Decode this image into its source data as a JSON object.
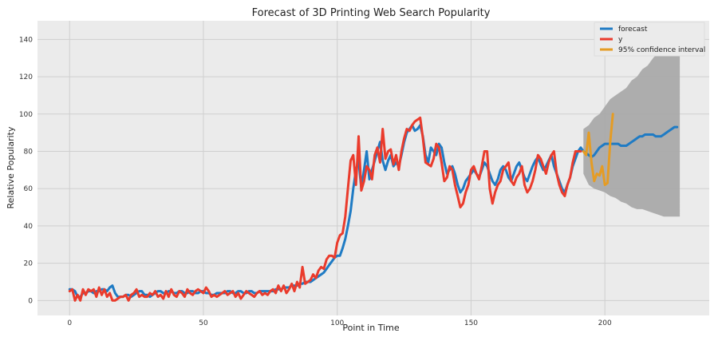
{
  "chart_data": {
    "type": "line",
    "title": "Forecast of 3D Printing Web Search Popularity",
    "xlabel": "Point in Time",
    "ylabel": "Relative Popularity",
    "xlim": [
      -12,
      239
    ],
    "ylim": [
      -8,
      150
    ],
    "xticks": [
      0,
      50,
      100,
      150,
      200
    ],
    "yticks": [
      0,
      20,
      40,
      60,
      80,
      100,
      120,
      140
    ],
    "grid": true,
    "legend_position": "top-right",
    "colors": {
      "forecast": "#1f7bc4",
      "y": "#ea3b2c",
      "confidence": "#e59c24",
      "band": "#a6a6a6",
      "plot_background": "#ebebeb",
      "grid": "#cfcfcf"
    },
    "series": [
      {
        "name": "forecast",
        "x": [
          0,
          1,
          2,
          3,
          4,
          5,
          6,
          7,
          8,
          9,
          10,
          11,
          12,
          13,
          14,
          15,
          16,
          17,
          18,
          19,
          20,
          21,
          22,
          23,
          24,
          25,
          26,
          27,
          28,
          29,
          30,
          31,
          32,
          33,
          34,
          35,
          36,
          37,
          38,
          39,
          40,
          41,
          42,
          43,
          44,
          45,
          46,
          47,
          48,
          49,
          50,
          51,
          52,
          53,
          54,
          55,
          56,
          57,
          58,
          59,
          60,
          61,
          62,
          63,
          64,
          65,
          66,
          67,
          68,
          69,
          70,
          71,
          72,
          73,
          74,
          75,
          76,
          77,
          78,
          79,
          80,
          81,
          82,
          83,
          84,
          85,
          86,
          87,
          88,
          89,
          90,
          91,
          92,
          93,
          94,
          95,
          96,
          97,
          98,
          99,
          100,
          101,
          102,
          103,
          104,
          105,
          106,
          107,
          108,
          109,
          110,
          111,
          112,
          113,
          114,
          115,
          116,
          117,
          118,
          119,
          120,
          121,
          122,
          123,
          124,
          125,
          126,
          127,
          128,
          129,
          130,
          131,
          132,
          133,
          134,
          135,
          136,
          137,
          138,
          139,
          140,
          141,
          142,
          143,
          144,
          145,
          146,
          147,
          148,
          149,
          150,
          151,
          152,
          153,
          154,
          155,
          156,
          157,
          158,
          159,
          160,
          161,
          162,
          163,
          164,
          165,
          166,
          167,
          168,
          169,
          170,
          171,
          172,
          173,
          174,
          175,
          176,
          177,
          178,
          179,
          180,
          181,
          182,
          183,
          184,
          185,
          186,
          187,
          188,
          189,
          190,
          191,
          192,
          193,
          194,
          195,
          196,
          197,
          198,
          199,
          200,
          201,
          202,
          203,
          204,
          205,
          206,
          207,
          208,
          209,
          210,
          211,
          212,
          213,
          214,
          215,
          216,
          217,
          218,
          219,
          220,
          221,
          222,
          223,
          224,
          225,
          226,
          227
        ],
        "y": [
          6,
          6,
          5,
          2,
          2,
          4,
          4,
          5,
          5,
          4,
          5,
          5,
          6,
          6,
          5,
          7,
          8,
          4,
          2,
          2,
          2,
          3,
          3,
          2,
          3,
          4,
          5,
          5,
          3,
          3,
          2,
          3,
          4,
          5,
          5,
          4,
          4,
          5,
          5,
          4,
          4,
          5,
          5,
          4,
          4,
          5,
          5,
          4,
          4,
          5,
          5,
          4,
          4,
          3,
          3,
          4,
          4,
          4,
          4,
          5,
          5,
          4,
          4,
          5,
          5,
          4,
          4,
          5,
          5,
          4,
          4,
          5,
          5,
          5,
          5,
          5,
          5,
          6,
          6,
          6,
          7,
          7,
          7,
          8,
          8,
          8,
          9,
          9,
          10,
          10,
          10,
          11,
          12,
          13,
          14,
          15,
          17,
          19,
          21,
          23,
          24,
          24,
          28,
          33,
          40,
          48,
          60,
          70,
          75,
          60,
          70,
          80,
          65,
          70,
          75,
          80,
          85,
          75,
          70,
          75,
          78,
          72,
          74,
          72,
          78,
          85,
          90,
          92,
          94,
          91,
          92,
          94,
          88,
          78,
          74,
          82,
          80,
          78,
          84,
          82,
          74,
          68,
          70,
          72,
          68,
          62,
          58,
          60,
          64,
          66,
          68,
          70,
          68,
          66,
          70,
          74,
          72,
          68,
          64,
          62,
          65,
          70,
          72,
          70,
          66,
          64,
          68,
          72,
          74,
          70,
          66,
          64,
          68,
          72,
          75,
          77,
          73,
          70,
          72,
          75,
          78,
          72,
          68,
          64,
          60,
          58,
          62,
          66,
          72,
          76,
          80,
          82,
          80,
          79,
          78,
          77,
          78,
          80,
          82,
          83,
          84,
          84,
          84,
          84,
          84,
          84,
          83,
          83,
          83,
          84,
          85,
          86,
          87,
          88,
          88,
          89,
          89,
          89,
          89,
          88,
          88,
          88,
          89,
          90,
          91,
          92,
          93,
          93
        ]
      },
      {
        "name": "y",
        "x": [
          0,
          1,
          2,
          3,
          4,
          5,
          6,
          7,
          8,
          9,
          10,
          11,
          12,
          13,
          14,
          15,
          16,
          17,
          18,
          19,
          20,
          21,
          22,
          23,
          24,
          25,
          26,
          27,
          28,
          29,
          30,
          31,
          32,
          33,
          34,
          35,
          36,
          37,
          38,
          39,
          40,
          41,
          42,
          43,
          44,
          45,
          46,
          47,
          48,
          49,
          50,
          51,
          52,
          53,
          54,
          55,
          56,
          57,
          58,
          59,
          60,
          61,
          62,
          63,
          64,
          65,
          66,
          67,
          68,
          69,
          70,
          71,
          72,
          73,
          74,
          75,
          76,
          77,
          78,
          79,
          80,
          81,
          82,
          83,
          84,
          85,
          86,
          87,
          88,
          89,
          90,
          91,
          92,
          93,
          94,
          95,
          96,
          97,
          98,
          99,
          100,
          101,
          102,
          103,
          104,
          105,
          106,
          107,
          108,
          109,
          110,
          111,
          112,
          113,
          114,
          115,
          116,
          117,
          118,
          119,
          120,
          121,
          122,
          123,
          124,
          125,
          126,
          127,
          128,
          129,
          130,
          131,
          132,
          133,
          134,
          135,
          136,
          137,
          138,
          139,
          140,
          141,
          142,
          143,
          144,
          145,
          146,
          147,
          148,
          149,
          150,
          151,
          152,
          153,
          154,
          155,
          156,
          157,
          158,
          159,
          160,
          161,
          162,
          163,
          164,
          165,
          166,
          167,
          168,
          169,
          170,
          171,
          172,
          173,
          174,
          175,
          176,
          177,
          178,
          179,
          180,
          181,
          182,
          183,
          184,
          185,
          186,
          187,
          188,
          189,
          190,
          191
        ],
        "y": [
          5,
          6,
          0,
          3,
          0,
          6,
          3,
          6,
          5,
          6,
          2,
          7,
          3,
          6,
          2,
          4,
          0,
          0,
          1,
          2,
          2,
          3,
          0,
          3,
          4,
          6,
          2,
          3,
          2,
          2,
          4,
          3,
          5,
          2,
          3,
          1,
          5,
          2,
          6,
          3,
          2,
          5,
          4,
          2,
          6,
          4,
          3,
          5,
          6,
          5,
          4,
          7,
          5,
          2,
          3,
          2,
          3,
          4,
          5,
          3,
          4,
          5,
          2,
          4,
          1,
          3,
          5,
          4,
          3,
          2,
          4,
          5,
          3,
          4,
          3,
          5,
          6,
          4,
          8,
          5,
          8,
          4,
          6,
          9,
          5,
          10,
          7,
          18,
          9,
          10,
          11,
          14,
          12,
          16,
          18,
          17,
          22,
          24,
          24,
          23,
          31,
          35,
          36,
          45,
          60,
          75,
          78,
          62,
          88,
          59,
          64,
          72,
          70,
          65,
          78,
          82,
          74,
          92,
          76,
          80,
          81,
          73,
          78,
          70,
          80,
          87,
          92,
          91,
          94,
          96,
          97,
          98,
          87,
          74,
          73,
          72,
          76,
          84,
          82,
          74,
          64,
          66,
          72,
          70,
          62,
          56,
          50,
          52,
          58,
          62,
          70,
          72,
          68,
          65,
          72,
          80,
          80,
          60,
          52,
          58,
          62,
          64,
          70,
          72,
          74,
          64,
          62,
          66,
          68,
          72,
          62,
          58,
          60,
          64,
          70,
          78,
          76,
          72,
          68,
          74,
          78,
          80,
          68,
          62,
          58,
          56,
          62,
          66,
          74,
          80,
          80,
          80
        ]
      },
      {
        "name": "95% confidence interval",
        "x": [
          192,
          193,
          194,
          195,
          196,
          197,
          198,
          199,
          200,
          201,
          202,
          203
        ],
        "y": [
          80,
          78,
          90,
          74,
          64,
          68,
          67,
          72,
          62,
          63,
          85,
          100
        ]
      }
    ],
    "confidence_band": {
      "x": [
        192,
        194,
        196,
        198,
        200,
        202,
        204,
        206,
        208,
        210,
        212,
        214,
        216,
        218,
        220,
        222,
        224,
        226,
        228
      ],
      "lower": [
        68,
        62,
        60,
        59,
        58,
        56,
        55,
        53,
        52,
        50,
        49,
        49,
        48,
        47,
        46,
        45,
        45,
        45,
        45
      ],
      "upper": [
        92,
        94,
        98,
        100,
        104,
        108,
        110,
        112,
        114,
        118,
        120,
        124,
        126,
        130,
        133,
        136,
        138,
        140,
        142
      ]
    }
  }
}
